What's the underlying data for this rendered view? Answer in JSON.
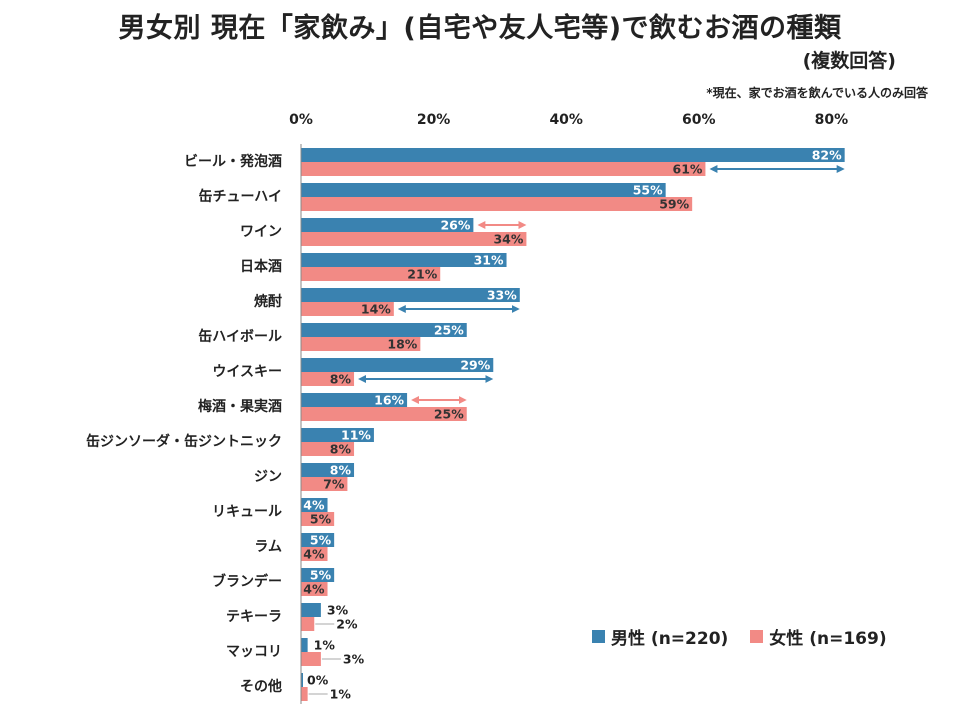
{
  "title": "男女別 現在「家飲み」(自宅や友人宅等)で飲むお酒の種類",
  "subtitle": "(複数回答)",
  "note": "*現在、家でお酒を飲んでいる人のみ回答",
  "colors": {
    "male": "#3a82b0",
    "female": "#f28a85",
    "axis": "#888888"
  },
  "chart_data": {
    "type": "bar",
    "orientation": "horizontal",
    "categories": [
      "ビール・発泡酒",
      "缶チューハイ",
      "ワイン",
      "日本酒",
      "焼酎",
      "缶ハイボール",
      "ウイスキー",
      "梅酒・果実酒",
      "缶ジンソーダ・缶ジントニック",
      "ジン",
      "リキュール",
      "ラム",
      "ブランデー",
      "テキーラ",
      "マッコリ",
      "その他"
    ],
    "series": [
      {
        "name": "男性 (n=220)",
        "key": "male",
        "values": [
          82,
          55,
          26,
          31,
          33,
          25,
          29,
          16,
          11,
          8,
          4,
          5,
          5,
          3,
          1,
          0
        ]
      },
      {
        "name": "女性 (n=169)",
        "key": "female",
        "values": [
          61,
          59,
          34,
          21,
          14,
          18,
          8,
          25,
          8,
          7,
          5,
          4,
          4,
          2,
          3,
          1
        ]
      }
    ],
    "tick_labels": [
      "0%",
      "20%",
      "40%",
      "60%",
      "80%"
    ],
    "ticks": [
      0,
      20,
      40,
      60,
      80
    ],
    "xlim": [
      0,
      82
    ],
    "unit": "%",
    "gap_arrows": [
      {
        "index": 0,
        "color": "male"
      },
      {
        "index": 2,
        "color": "female"
      },
      {
        "index": 4,
        "color": "male"
      },
      {
        "index": 6,
        "color": "male"
      },
      {
        "index": 7,
        "color": "female"
      }
    ]
  }
}
